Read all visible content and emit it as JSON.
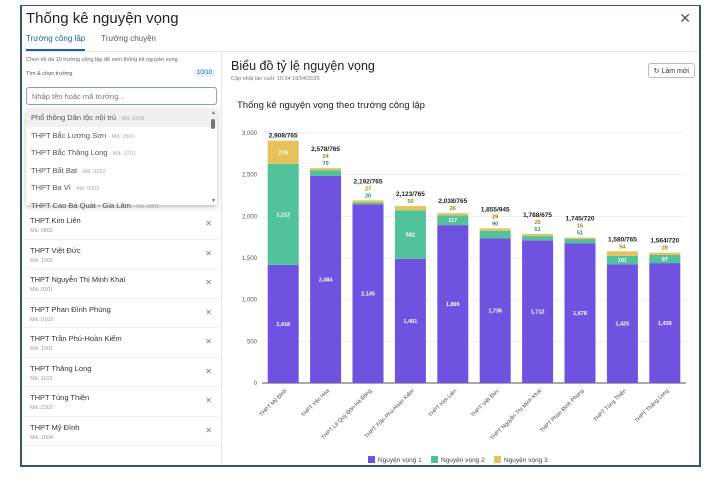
{
  "dialog": {
    "title": "Thống kê nguyện vọng",
    "close_icon": "close-icon"
  },
  "tabs": [
    {
      "label": "Trường công lập",
      "active": true
    },
    {
      "label": "Trường chuyên",
      "active": false
    }
  ],
  "left": {
    "hint": "Chọn tối đa 10 trường công lập để xem thống kê nguyện vọng.",
    "pick_label": "Tìm & chọn trường",
    "count": "10/10",
    "search_placeholder": "Nhập tên hoặc mã trường...",
    "dropdown": [
      {
        "name": "Phổ thông Dân tộc nội trú",
        "code": "- Mã: 0206"
      },
      {
        "name": "THPT Bắc Lương Sơn",
        "code": "- Mã: 2501"
      },
      {
        "name": "THPT Bắc Thăng Long",
        "code": "- Mã: 0701"
      },
      {
        "name": "THPT Bất Bạt",
        "code": "- Mã: 0202"
      },
      {
        "name": "THPT Ba Vì",
        "code": "- Mã: 0201"
      },
      {
        "name": "THPT Cao Bá Quát - Gia Lâm",
        "code": "- Mã: 0801"
      }
    ],
    "selected": [
      {
        "name": "THPT Kim Liên",
        "code": "Mã: 0802"
      },
      {
        "name": "THPT Việt Đức",
        "code": "Mã: 1302"
      },
      {
        "name": "THPT Nguyễn Thị Minh Khai",
        "code": "Mã: 0301"
      },
      {
        "name": "THPT Phan Đình Phùng",
        "code": "Mã: 0103"
      },
      {
        "name": "THPT Trần Phú-Hoàn Kiếm",
        "code": "Mã: 1301"
      },
      {
        "name": "THPT Thăng Long",
        "code": "Mã: 1102"
      },
      {
        "name": "THPT Tùng Thiện",
        "code": "Mã: 2302"
      },
      {
        "name": "THPT Mỹ Đình",
        "code": "Mã: 1804"
      }
    ]
  },
  "main": {
    "title": "Biểu đồ tỷ lệ nguyện vọng",
    "updated": "Cập nhật lần cuối: 10:34 16/04/2026",
    "refresh_label": "↻ Làm mới"
  },
  "chart_data": {
    "type": "bar",
    "stacked": true,
    "title": "Thống kê nguyện vọng theo trường công lập",
    "categories": [
      "THPT Mỹ Đình",
      "THPT Yên Hòa",
      "THPT Lê Quý Đôn-Hà Đông",
      "THPT Trần Phú-Hoàn Kiếm",
      "THPT Kim Liên",
      "THPT Việt Đức",
      "THPT Nguyễn Thị Minh Khai",
      "THPT Phan Đình Phùng",
      "THPT Tùng Thiện",
      "THPT Thăng Long"
    ],
    "totals": [
      "2,908/765",
      "2,578/765",
      "2,192/765",
      "2,123/765",
      "2,038/765",
      "1,855/945",
      "1,788/675",
      "1,745/720",
      "1,580/765",
      "1,564/720"
    ],
    "series": [
      {
        "name": "Nguyện vọng 1",
        "color": "#7052e0",
        "values": [
          1418,
          2484,
          2145,
          1491,
          1895,
          1736,
          1712,
          1678,
          1425,
          1439
        ]
      },
      {
        "name": "Nguyện vọng 2",
        "color": "#52c29a",
        "values": [
          1212,
          70,
          20,
          582,
          117,
          90,
          51,
          51,
          101,
          97
        ]
      },
      {
        "name": "Nguyện vọng 3",
        "color": "#e6c25a",
        "values": [
          278,
          24,
          27,
          50,
          26,
          29,
          25,
          16,
          54,
          28
        ]
      }
    ],
    "ylim": [
      0,
      3000
    ],
    "yticks": [
      0,
      500,
      1000,
      1500,
      2000,
      2500,
      3000
    ],
    "grid": true,
    "legend": "bottom"
  }
}
